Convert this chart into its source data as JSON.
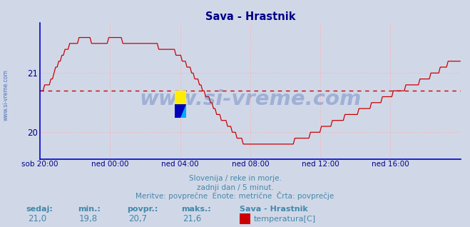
{
  "title": "Sava - Hrastnik",
  "title_color": "#000088",
  "background_color": "#d0d8e8",
  "plot_bg_color": "#d0d8e8",
  "line_color": "#cc0000",
  "avg_line_color": "#cc0000",
  "avg_line_value": 20.7,
  "ylim": [
    19.55,
    21.85
  ],
  "yticks": [
    20.0,
    21.0
  ],
  "ytick_labels": [
    "20",
    "21"
  ],
  "grid_color": "#ffaaaa",
  "axis_color": "#0000cc",
  "tick_color": "#000088",
  "watermark": "www.si-vreme.com",
  "watermark_color": "#3355aa",
  "sub1": "Slovenija / reke in morje.",
  "sub2": "zadnji dan / 5 minut.",
  "sub3": "Meritve: povprečne  Enote: metrične  Črta: povprečje",
  "footer_color": "#4488aa",
  "footer_bold_items": [
    "sedaj:",
    "min.:",
    "povpr.:",
    "maks.:"
  ],
  "footer_vals": [
    "21,0",
    "19,8",
    "20,7",
    "21,6"
  ],
  "footer_series": "Sava - Hrastnik",
  "footer_legend": "temperatura[C]",
  "legend_color": "#cc0000",
  "xtick_labels": [
    "sob 20:00",
    "ned 00:00",
    "ned 04:00",
    "ned 08:00",
    "ned 12:00",
    "ned 16:00"
  ],
  "xtick_positions": [
    0.0,
    0.1667,
    0.3333,
    0.5,
    0.6667,
    0.8333
  ],
  "side_label": "www.si-vreme.com",
  "xlim": [
    0,
    1
  ]
}
